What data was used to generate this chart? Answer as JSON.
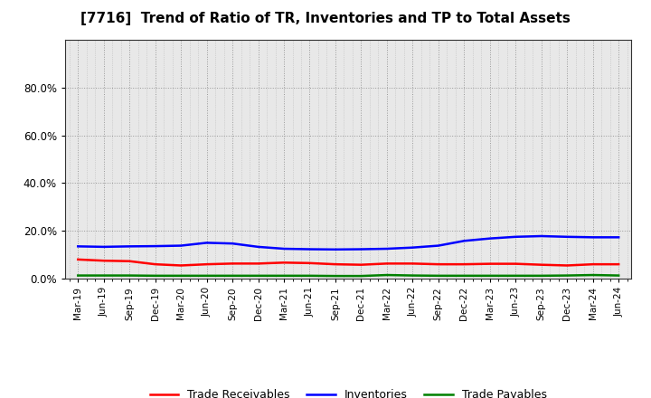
{
  "title": "[7716]  Trend of Ratio of TR, Inventories and TP to Total Assets",
  "x_labels": [
    "Mar-19",
    "Jun-19",
    "Sep-19",
    "Dec-19",
    "Mar-20",
    "Jun-20",
    "Sep-20",
    "Dec-20",
    "Mar-21",
    "Jun-21",
    "Sep-21",
    "Dec-21",
    "Mar-22",
    "Jun-22",
    "Sep-22",
    "Dec-22",
    "Mar-23",
    "Jun-23",
    "Sep-23",
    "Dec-23",
    "Mar-24",
    "Jun-24"
  ],
  "trade_receivables": [
    0.08,
    0.075,
    0.073,
    0.06,
    0.055,
    0.06,
    0.063,
    0.063,
    0.067,
    0.065,
    0.06,
    0.058,
    0.063,
    0.063,
    0.06,
    0.06,
    0.062,
    0.062,
    0.058,
    0.055,
    0.06,
    0.06
  ],
  "inventories": [
    0.135,
    0.133,
    0.135,
    0.136,
    0.138,
    0.15,
    0.147,
    0.133,
    0.125,
    0.123,
    0.122,
    0.123,
    0.125,
    0.13,
    0.138,
    0.158,
    0.168,
    0.175,
    0.178,
    0.175,
    0.173,
    0.173
  ],
  "trade_payables": [
    0.013,
    0.013,
    0.013,
    0.012,
    0.012,
    0.012,
    0.012,
    0.012,
    0.012,
    0.012,
    0.011,
    0.011,
    0.015,
    0.013,
    0.012,
    0.012,
    0.012,
    0.012,
    0.012,
    0.013,
    0.015,
    0.013
  ],
  "tr_color": "#ff0000",
  "inv_color": "#0000ff",
  "tp_color": "#008000",
  "background_color": "#ffffff",
  "plot_bg_color": "#e8e8e8",
  "grid_color": "#aaaaaa",
  "legend_labels": [
    "Trade Receivables",
    "Inventories",
    "Trade Payables"
  ]
}
